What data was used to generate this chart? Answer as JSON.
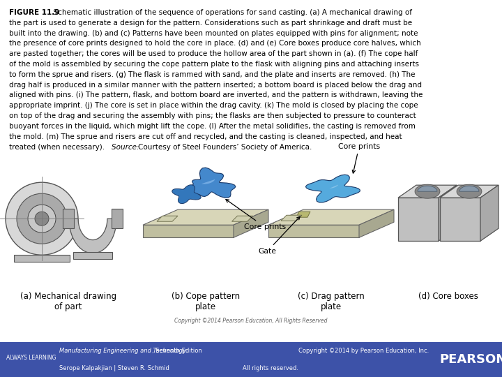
{
  "title_bold": "FIGURE 11.9",
  "title_normal": "  Schematic illustration of the sequence of operations for sand casting. (a) A mechanical drawing of the part is used to generate a design for the pattern. Considerations such as part shrinkage and draft must be built into the drawing. (b) and (c) Patterns have been mounted on plates equipped with pins for alignment; note the presence of core prints designed to hold the core in place. (d) and (e) Core boxes produce core halves, which are pasted together; the cores will be used to produce the hollow area of the part shown in (a). (f) The cope half of the mold is assembled by securing the cope pattern plate to the flask with aligning pins and attaching inserts to form the sprue and risers. (g) The flask is rammed with sand, and the plate and inserts are removed. (h) The drag half is produced in a similar manner with the pattern inserted; a bottom board is placed below the drag and aligned with pins. (i) The pattern, flask, and bottom board are inverted, and the pattern is withdrawn, leaving the appropriate imprint. (j) The core is set in place within the drag cavity. (k) The mold is closed by placing the cope on top of the drag and securing the assembly with pins; the flasks are then subjected to pressure to counteract buoyant forces in the liquid, which might lift the cope. (l) After the metal solidifies, the casting is removed from the mold. (m) The sprue and risers are cut off and recycled, and the casting is cleaned, inspected, and heat treated (when necessary). ",
  "source_italic": "Source: ",
  "source_normal": "Courtesy of Steel Founders’ Society of America.",
  "caption_a": "(a) Mechanical drawing\nof part",
  "caption_b": "(b) Cope pattern\nplate",
  "caption_c": "(c) Drag pattern\nplate",
  "caption_d": "(d) Core boxes",
  "label_core_prints_b": "Core prints",
  "label_core_prints_c": "Core prints",
  "label_gate": "Gate",
  "copyright_text": "Copyright ©2014 Pearson Education, All Rights Reserved",
  "footer_bg": "#3d52a8",
  "footer_left1": "ALWAYS LEARNING",
  "footer_left2_italic": "Manufacturing Engineering and Technology",
  "footer_left2_normal": ", Seventh Edition",
  "footer_left3": "Serope Kalpakjian | Steven R. Schmid",
  "footer_right1": "Copyright ©2014 by Pearson Education, Inc.",
  "footer_right2": "All rights reserved.",
  "footer_pearson": "PEARSON",
  "bg_color": "#ffffff",
  "text_color": "#000000",
  "footer_text_color": "#ffffff",
  "title_fontsize": 7.5,
  "caption_fontsize": 8.5,
  "label_fontsize": 7.8,
  "footer_fontsize": 6.5
}
